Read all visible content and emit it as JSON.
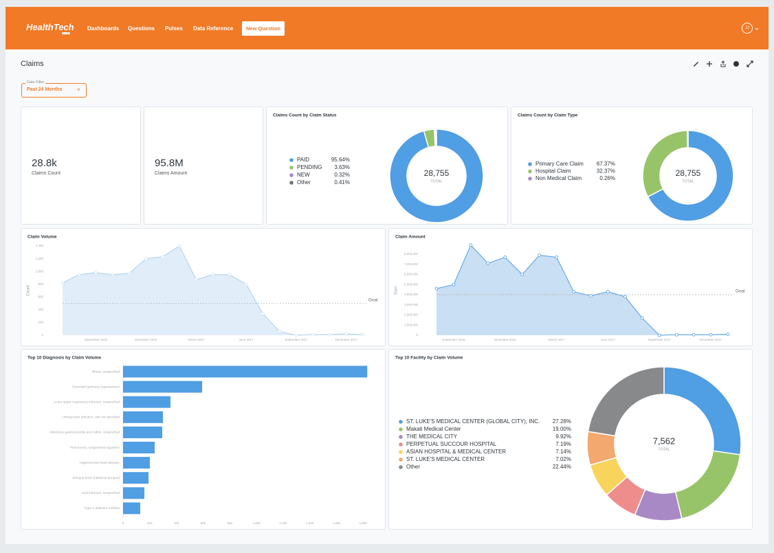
{
  "header": {
    "logo": "HealthTech",
    "nav": [
      "Dashboards",
      "Questions",
      "Pulses",
      "Data Reference"
    ],
    "button": "New Question",
    "avatar": "JJ"
  },
  "dashboard": {
    "title": "Claims"
  },
  "filter": {
    "label": "Date Filter",
    "value": "Past 24 Months",
    "clear": "×"
  },
  "cards": [
    {
      "value": "28.8k",
      "label": "Claims Count"
    },
    {
      "value": "95.8M",
      "label": "Claims Amount"
    }
  ],
  "chart_data": [
    {
      "type": "pie",
      "title": "Claims Count by Claim Status",
      "categories": [
        "PAID",
        "PENDING",
        "NEW",
        "Other"
      ],
      "values": [
        95.64,
        3.63,
        0.32,
        0.41
      ],
      "value_labels": [
        "95.64%",
        "3.63%",
        "0.32%",
        "0.41%"
      ],
      "colors": [
        "#509ee3",
        "#98c469",
        "#a989c5",
        "#727479"
      ],
      "center_value": "28,755",
      "center_label": "TOTAL"
    },
    {
      "type": "pie",
      "title": "Claims Count by Claim Type",
      "categories": [
        "Primary Care Claim",
        "Hospital Claim",
        "Non Medical Claim"
      ],
      "values": [
        67.37,
        32.37,
        0.26
      ],
      "value_labels": [
        "67.37%",
        "32.37%",
        "0.26%"
      ],
      "colors": [
        "#509ee3",
        "#98c469",
        "#a989c5"
      ],
      "center_value": "28,755",
      "center_label": "TOTAL"
    },
    {
      "type": "area",
      "title": "Claim Volume",
      "y_label": "Count",
      "color": "#a9cfee",
      "fill": "#e1eef9",
      "categories": [
        null,
        null,
        "September 2016",
        null,
        null,
        "December 2016",
        null,
        null,
        "March 2017",
        null,
        null,
        "June 2017",
        null,
        null,
        "September 2017",
        null,
        null,
        "December 2017",
        null
      ],
      "values": [
        820,
        950,
        980,
        950,
        970,
        1200,
        1230,
        1400,
        870,
        950,
        950,
        800,
        340,
        60,
        0,
        10,
        10,
        20,
        10
      ],
      "ylim": [
        0,
        1400
      ],
      "yticks": [
        0,
        200,
        400,
        600,
        800,
        {
          "value": 1000,
          "label": "1,000"
        },
        {
          "value": 1200,
          "label": "1,200"
        },
        {
          "value": 1400,
          "label": "1,400"
        }
      ],
      "goal": 500,
      "goal_label": "Goal",
      "grid": false
    },
    {
      "type": "area",
      "title": "Claim Amount",
      "y_label": "Sum",
      "color": "#509ee3",
      "fill": "#c9dff3",
      "categories": [
        null,
        "September 2016",
        null,
        null,
        "December 2016",
        null,
        null,
        "March 2017",
        null,
        null,
        "June 2017",
        null,
        null,
        "September 2017",
        null,
        null,
        "December 2017",
        null
      ],
      "values": [
        4600000,
        5000000,
        8900000,
        7100000,
        7700000,
        6000000,
        7900000,
        7700000,
        4300000,
        3900000,
        4300000,
        3800000,
        1700000,
        0,
        50000,
        50000,
        50000,
        100000
      ],
      "ylim": [
        0,
        9000000
      ],
      "yticks": [
        0,
        {
          "value": 1000000,
          "label": "1,000,000"
        },
        {
          "value": 2000000,
          "label": "2,000,000"
        },
        {
          "value": 3000000,
          "label": "3,000,000"
        },
        {
          "value": 4000000,
          "label": "4,000,000"
        },
        {
          "value": 5000000,
          "label": "5,000,000"
        },
        {
          "value": 6000000,
          "label": "6,000,000"
        },
        {
          "value": 7000000,
          "label": "7,000,000"
        },
        {
          "value": 8000000,
          "label": "8,000,000"
        }
      ],
      "goal": 4000000,
      "goal_label": "Goal",
      "grid": false
    },
    {
      "type": "bar",
      "orientation": "horizontal",
      "title": "Top 10 Diagnosis by Claim Volume",
      "color": "#509ee3",
      "categories": [
        "Illness, unspecified",
        "Essential (primary) hypertension",
        "Acute upper respiratory infection, unspecified",
        "Urinary tract infection, site not specified",
        "Infectious gastroenteritis and colitis, unspecified",
        "Pneumonia, unspecified organism",
        "Hypertensive heart disease",
        "Dengue fever [classical dengue]",
        "Viral infection, unspecified",
        "Type 2 diabetes mellitus"
      ],
      "values": [
        1831,
        593,
        356,
        299,
        294,
        237,
        201,
        191,
        160,
        129
      ],
      "xlim": [
        0,
        1850
      ],
      "xticks": [
        0,
        200,
        400,
        600,
        800,
        {
          "value": 1000,
          "label": "1,000"
        },
        {
          "value": 1200,
          "label": "1,200"
        },
        {
          "value": 1400,
          "label": "1,400"
        },
        {
          "value": 1600,
          "label": "1,600"
        },
        {
          "value": 1800,
          "label": "1,800"
        }
      ]
    },
    {
      "type": "pie",
      "title": "Top 10 Facility by Claim Volume",
      "categories": [
        "ST. LUKE'S MEDICAL CENTER (GLOBAL CITY), INC.",
        "Makati Medical Center",
        "THE MEDICAL CITY",
        "PERPETUAL SUCCOUR HOSPITAL",
        "ASIAN HOSPITAL & MEDICAL CENTER",
        "ST. LUKE'S MEDICAL CENTER",
        "Other"
      ],
      "values": [
        27.28,
        19.0,
        9.92,
        7.19,
        7.14,
        7.02,
        22.44
      ],
      "value_labels": [
        "27.28%",
        "19.00%",
        "9.92%",
        "7.19%",
        "7.14%",
        "7.02%",
        "22.44%"
      ],
      "colors": [
        "#509ee3",
        "#98c469",
        "#a989c5",
        "#ef8c8c",
        "#f9d45c",
        "#f2a86f",
        "#88898b"
      ],
      "center_value": "7,562",
      "center_label": "TOTAL"
    }
  ]
}
